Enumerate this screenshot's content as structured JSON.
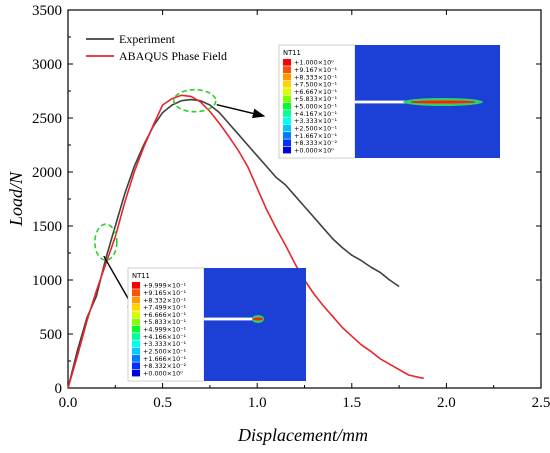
{
  "chart_data": {
    "type": "line",
    "title": "",
    "xlabel": "Displacement/mm",
    "ylabel": "Load/N",
    "xlim": [
      0,
      2.5
    ],
    "ylim": [
      0,
      3500
    ],
    "xticks": [
      0.0,
      0.5,
      1.0,
      1.5,
      2.0,
      2.5
    ],
    "xtick_labels": [
      "0.0",
      "0.5",
      "1.0",
      "1.5",
      "2.0",
      "2.5"
    ],
    "yticks": [
      0,
      500,
      1000,
      1500,
      2000,
      2500,
      3000,
      3500
    ],
    "ytick_labels": [
      "0",
      "500",
      "1000",
      "1500",
      "2000",
      "2500",
      "3000",
      "3500"
    ],
    "grid": false,
    "legend_position": "top-left",
    "series": [
      {
        "name": "Experiment",
        "color": "#404040",
        "x": [
          0,
          0.05,
          0.1,
          0.15,
          0.2,
          0.25,
          0.3,
          0.35,
          0.4,
          0.45,
          0.5,
          0.55,
          0.6,
          0.65,
          0.7,
          0.75,
          0.8,
          0.85,
          0.9,
          0.95,
          1.0,
          1.05,
          1.1,
          1.15,
          1.2,
          1.25,
          1.3,
          1.35,
          1.4,
          1.45,
          1.5,
          1.55,
          1.6,
          1.65,
          1.7,
          1.75
        ],
        "y": [
          0,
          350,
          650,
          850,
          1200,
          1500,
          1800,
          2050,
          2250,
          2420,
          2550,
          2620,
          2660,
          2670,
          2660,
          2620,
          2550,
          2450,
          2350,
          2250,
          2150,
          2050,
          1950,
          1880,
          1780,
          1680,
          1580,
          1480,
          1380,
          1300,
          1230,
          1180,
          1120,
          1070,
          1000,
          940
        ]
      },
      {
        "name": "ABAQUS Phase Field",
        "color": "#e8262a",
        "x": [
          0,
          0.05,
          0.1,
          0.15,
          0.2,
          0.25,
          0.3,
          0.35,
          0.4,
          0.45,
          0.5,
          0.55,
          0.6,
          0.65,
          0.7,
          0.75,
          0.8,
          0.85,
          0.9,
          0.95,
          1.0,
          1.05,
          1.1,
          1.15,
          1.2,
          1.25,
          1.3,
          1.35,
          1.4,
          1.45,
          1.5,
          1.55,
          1.6,
          1.65,
          1.7,
          1.75,
          1.8,
          1.85,
          1.88
        ],
        "y": [
          0,
          300,
          620,
          900,
          1150,
          1400,
          1720,
          2000,
          2230,
          2430,
          2620,
          2680,
          2710,
          2700,
          2650,
          2560,
          2450,
          2330,
          2200,
          2050,
          1850,
          1650,
          1480,
          1320,
          1150,
          1000,
          870,
          760,
          660,
          560,
          480,
          400,
          340,
          270,
          220,
          170,
          120,
          100,
          90
        ]
      }
    ],
    "annotations": [
      {
        "type": "contour-inset",
        "variable": "NT11",
        "target": {
          "x": 0.67,
          "y": 2660
        },
        "levels": [
          "+1.000×10⁰",
          "+9.167×10⁻¹",
          "+8.333×10⁻¹",
          "+7.500×10⁻¹",
          "+6.667×10⁻¹",
          "+5.833×10⁻¹",
          "+5.000×10⁻¹",
          "+4.167×10⁻¹",
          "+3.333×10⁻¹",
          "+2.500×10⁻¹",
          "+1.667×10⁻¹",
          "+8.333×10⁻²",
          "+0.000×10⁰"
        ]
      },
      {
        "type": "contour-inset",
        "variable": "NT11",
        "target": {
          "x": 0.2,
          "y": 1350
        },
        "levels": [
          "+9.999×10⁻¹",
          "+9.165×10⁻¹",
          "+8.332×10⁻¹",
          "+7.499×10⁻¹",
          "+6.666×10⁻¹",
          "+5.833×10⁻¹",
          "+4.999×10⁻¹",
          "+4.166×10⁻¹",
          "+3.333×10⁻¹",
          "+2.500×10⁻¹",
          "+1.666×10⁻¹",
          "+8.332×10⁻²",
          "+0.000×10⁰"
        ]
      }
    ],
    "colorbar_colors": [
      "#ff0000",
      "#ff4f00",
      "#ff9900",
      "#ffd400",
      "#d7ff00",
      "#7fff00",
      "#00ff2a",
      "#00ff99",
      "#00ffee",
      "#00c8ff",
      "#0078ff",
      "#0032ff",
      "#0000e0"
    ],
    "inset_background": "#1c3fd6"
  }
}
